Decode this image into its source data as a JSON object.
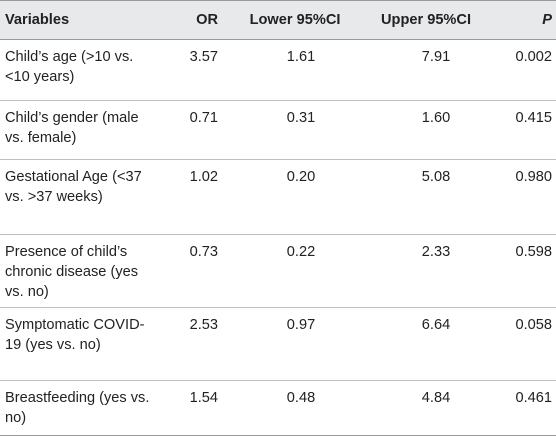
{
  "table": {
    "headers": {
      "variables": "Variables",
      "or": "OR",
      "lower": "Lower 95%CI",
      "upper": "Upper 95%CI",
      "p": "P"
    },
    "rows": [
      {
        "variable": "Child’s age (>10 vs. <10 years)",
        "or": "3.57",
        "lower": "1.61",
        "upper": "7.91",
        "p": "0.002"
      },
      {
        "variable": "Child’s gender (male vs. female)",
        "or": "0.71",
        "lower": "0.31",
        "upper": "1.60",
        "p": "0.415"
      },
      {
        "variable": "Gestational Age (<37 vs. >37 weeks)",
        "or": "1.02",
        "lower": "0.20",
        "upper": "5.08",
        "p": "0.980"
      },
      {
        "variable": "Presence of child’s chronic disease (yes vs. no)",
        "or": "0.73",
        "lower": "0.22",
        "upper": "2.33",
        "p": "0.598"
      },
      {
        "variable": "Symptomatic COVID-19 (yes vs. no)",
        "or": "2.53",
        "lower": "0.97",
        "upper": "6.64",
        "p": "0.058"
      },
      {
        "variable": "Breastfeeding (yes vs. no)",
        "or": "1.54",
        "lower": "0.48",
        "upper": "4.84",
        "p": "0.461"
      }
    ]
  }
}
